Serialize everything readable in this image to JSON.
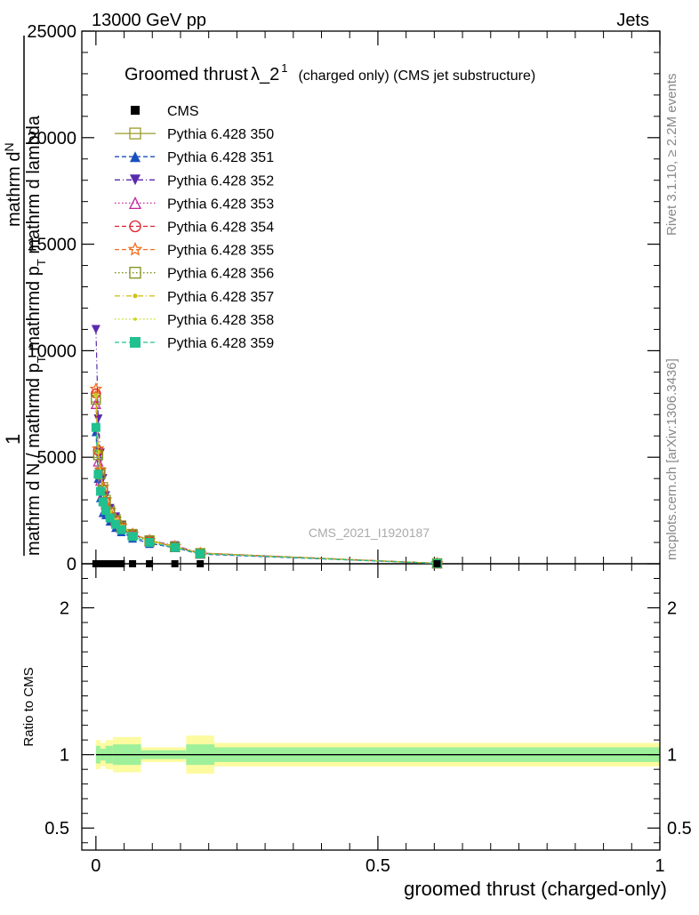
{
  "header": {
    "left": "13000 GeV pp",
    "right": "Jets"
  },
  "side_labels": {
    "rivet": "Rivet 3.1.10, ≥ 2.2M events",
    "mcplots": "mcplots.cern.ch [arXiv:1306.3436]"
  },
  "watermark": "CMS_2021_I1920187",
  "title": {
    "main": "Groomed thrust",
    "lambda": "λ_2",
    "sup": "1",
    "small": "(charged only) (CMS jet substructure)"
  },
  "ylabel": {
    "one": "1",
    "num_top": "mathrm d",
    "num_N": "N",
    "denom_lambda": "mathrm d lambda",
    "frac_main": "mathrm d p",
    "T": "T",
    "frac_tail": "mathrm d p",
    "T2": "T",
    "frac_tail2": " mathrm d lambda",
    "denom_main": "mathrm d N / mathrmd p",
    "T3": "T",
    "denom_tail": " mathrmd p",
    "denom_left": "mathrm d",
    "denom_N": "N"
  },
  "ratio_ylabel": "Ratio to CMS",
  "xlabel": "groomed thrust (charged-only)",
  "legend": [
    {
      "label": "CMS",
      "color": "#000000",
      "marker": "square-filled",
      "line": "none"
    },
    {
      "label": "Pythia 6.428 350",
      "color": "#9a9a2a",
      "marker": "square-open",
      "line": "solid"
    },
    {
      "label": "Pythia 6.428 351",
      "color": "#1a4fbf",
      "marker": "triangle-up-filled",
      "line": "dashed"
    },
    {
      "label": "Pythia 6.428 352",
      "color": "#5a2aae",
      "marker": "triangle-down-filled",
      "line": "dashdot"
    },
    {
      "label": "Pythia 6.428 353",
      "color": "#c0289a",
      "marker": "triangle-up-open",
      "line": "dotted"
    },
    {
      "label": "Pythia 6.428 354",
      "color": "#e0202a",
      "marker": "circle-open",
      "line": "dashed"
    },
    {
      "label": "Pythia 6.428 355",
      "color": "#f07020",
      "marker": "star-open",
      "line": "dashed"
    },
    {
      "label": "Pythia 6.428 356",
      "color": "#80901a",
      "marker": "square-open",
      "line": "dotted"
    },
    {
      "label": "Pythia 6.428 357",
      "color": "#d0c020",
      "marker": "dot",
      "line": "dashdot"
    },
    {
      "label": "Pythia 6.428 358",
      "color": "#c8d820",
      "marker": "dot-small",
      "line": "dotted"
    },
    {
      "label": "Pythia 6.428 359",
      "color": "#20c090",
      "marker": "square-filled",
      "line": "dashed"
    }
  ],
  "chart_data": {
    "type": "line",
    "x_range": [
      -0.025,
      1.0
    ],
    "main": {
      "y_range": [
        0,
        25000
      ],
      "y_ticks": [
        0,
        5000,
        10000,
        15000,
        20000,
        25000
      ],
      "y_tick_labels": [
        "0",
        "5000",
        "10000",
        "15000",
        "20000",
        "25000"
      ],
      "x": [
        0.0,
        0.004,
        0.008,
        0.0125,
        0.0175,
        0.025,
        0.035,
        0.045,
        0.065,
        0.095,
        0.14,
        0.185,
        0.605
      ],
      "cms_values": [
        0,
        0,
        0,
        0,
        0,
        0,
        0,
        0,
        0,
        0,
        0,
        0,
        0
      ],
      "series": [
        {
          "name": "Pythia 6.428 350",
          "values": [
            7800,
            5200,
            4300,
            3600,
            3000,
            2500,
            2100,
            1800,
            1400,
            1100,
            800,
            500,
            20
          ]
        },
        {
          "name": "Pythia 6.428 351",
          "values": [
            6200,
            4000,
            3100,
            2400,
            2300,
            2000,
            1700,
            1500,
            1200,
            950,
            750,
            450,
            15
          ]
        },
        {
          "name": "Pythia 6.428 352",
          "values": [
            11000,
            6800,
            5200,
            4000,
            3200,
            2600,
            2200,
            1800,
            1400,
            1100,
            850,
            500,
            20
          ]
        },
        {
          "name": "Pythia 6.428 353",
          "values": [
            7500,
            4800,
            3900,
            3300,
            2800,
            2400,
            2000,
            1700,
            1350,
            1050,
            780,
            480,
            18
          ]
        },
        {
          "name": "Pythia 6.428 354",
          "values": [
            8000,
            5300,
            4300,
            3500,
            2900,
            2450,
            2050,
            1750,
            1380,
            1080,
            800,
            490,
            20
          ]
        },
        {
          "name": "Pythia 6.428 355",
          "values": [
            8200,
            5400,
            4400,
            3600,
            3000,
            2500,
            2100,
            1780,
            1400,
            1100,
            810,
            500,
            20
          ]
        },
        {
          "name": "Pythia 6.428 356",
          "values": [
            7700,
            5100,
            4200,
            3450,
            2900,
            2420,
            2030,
            1740,
            1370,
            1070,
            790,
            485,
            19
          ]
        },
        {
          "name": "Pythia 6.428 357",
          "values": [
            7900,
            5250,
            4250,
            3500,
            2950,
            2460,
            2060,
            1760,
            1385,
            1085,
            800,
            490,
            20
          ]
        },
        {
          "name": "Pythia 6.428 358",
          "values": [
            7850,
            5200,
            4220,
            3480,
            2930,
            2450,
            2050,
            1750,
            1380,
            1080,
            798,
            488,
            20
          ]
        },
        {
          "name": "Pythia 6.428 359",
          "values": [
            6400,
            4200,
            3400,
            2900,
            2500,
            2150,
            1850,
            1600,
            1280,
            1000,
            760,
            470,
            17
          ]
        }
      ]
    },
    "ratio": {
      "y_range": [
        0.35,
        2.3
      ],
      "y_ticks": [
        0.5,
        1,
        2
      ],
      "y_tick_labels": [
        "0.5",
        "1",
        "2"
      ],
      "line": 1,
      "bins": [
        {
          "lo": 0.0,
          "hi": 0.008,
          "inner": 0.06,
          "outer": 0.1
        },
        {
          "lo": 0.008,
          "hi": 0.017,
          "inner": 0.04,
          "outer": 0.08
        },
        {
          "lo": 0.017,
          "hi": 0.03,
          "inner": 0.06,
          "outer": 0.1
        },
        {
          "lo": 0.03,
          "hi": 0.08,
          "inner": 0.07,
          "outer": 0.12
        },
        {
          "lo": 0.08,
          "hi": 0.16,
          "inner": 0.03,
          "outer": 0.05
        },
        {
          "lo": 0.16,
          "hi": 0.21,
          "inner": 0.07,
          "outer": 0.13
        },
        {
          "lo": 0.21,
          "hi": 1.0,
          "inner": 0.05,
          "outer": 0.08
        }
      ]
    },
    "x_ticks": [
      0,
      0.5,
      1
    ],
    "x_tick_labels": [
      "0",
      "0.5",
      "1"
    ]
  }
}
